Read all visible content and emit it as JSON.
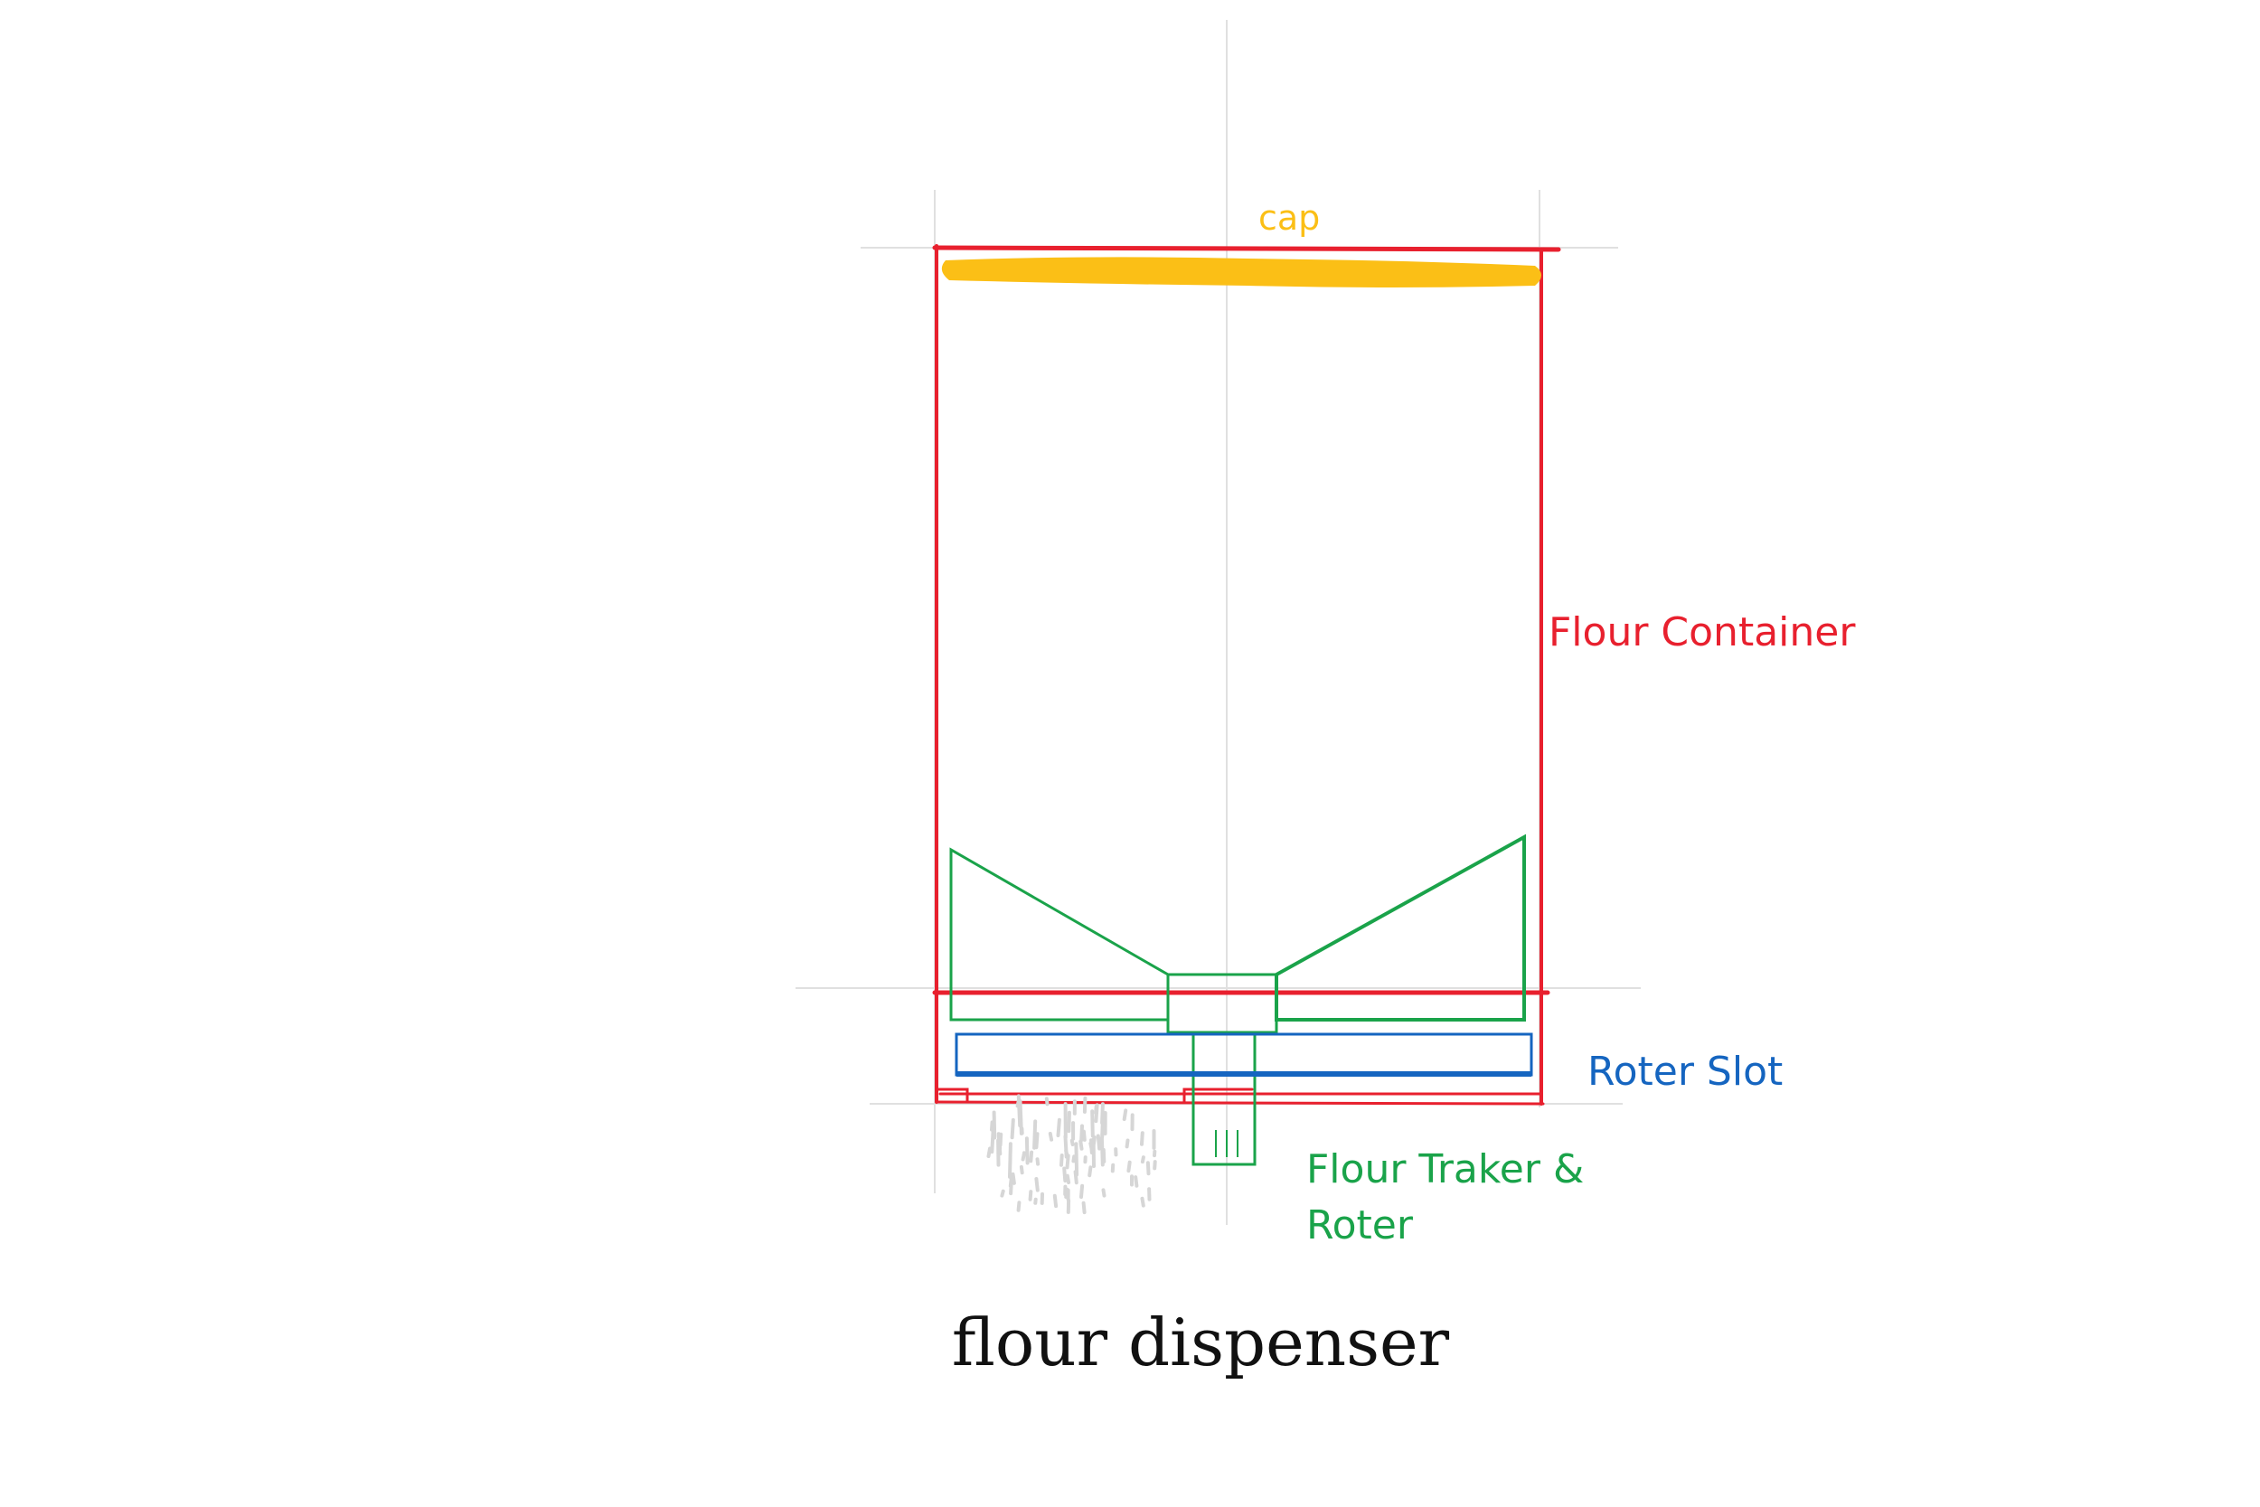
{
  "diagram": {
    "title": "flour dispenser",
    "labels": {
      "cap": "cap",
      "container": "Flour Container",
      "slot": "Roter Slot",
      "tracker_line1": "Flour Traker &",
      "tracker_line2": "Roter"
    },
    "colors": {
      "container": "#e8202e",
      "cap": "#fbbf16",
      "tracker": "#1aa34a",
      "slot": "#1565c0",
      "guide": "#d9d9d9",
      "particles": "#d6d6d6",
      "title": "#111111"
    }
  }
}
